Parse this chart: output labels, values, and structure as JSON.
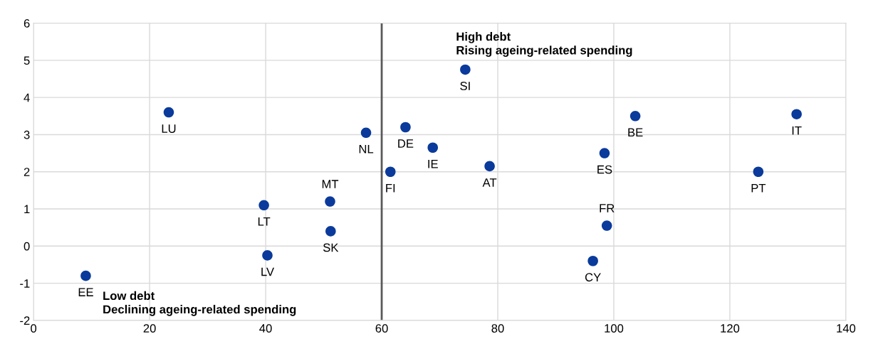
{
  "chart_data": {
    "type": "scatter",
    "x": [
      9,
      23.3,
      39.7,
      40.3,
      51.1,
      51.2,
      57.3,
      61.5,
      64.1,
      68.8,
      74.4,
      78.6,
      96.4,
      98.4,
      98.8,
      103.7,
      124.9,
      131.5
    ],
    "series": [
      {
        "color": "#0a3a9b",
        "values": [
          -0.8,
          3.6,
          1.1,
          -0.25,
          1.2,
          0.4,
          3.05,
          2.0,
          3.2,
          2.65,
          4.75,
          2.15,
          -0.4,
          2.5,
          0.55,
          3.5,
          2.0,
          3.55
        ],
        "value_labels": [
          "EE",
          "LU",
          "LT",
          "LV",
          "MT",
          "SK",
          "NL",
          "FI",
          "DE",
          "IE",
          "SI",
          "AT",
          "CY",
          "ES",
          "FR",
          "BE",
          "PT",
          "IT"
        ]
      }
    ],
    "xlim": [
      0,
      140
    ],
    "xticks": [
      0,
      20,
      40,
      60,
      80,
      100,
      120,
      140
    ],
    "ylim": [
      -2,
      6
    ],
    "yticks": [
      -2,
      -1,
      0,
      1,
      2,
      3,
      4,
      5,
      6
    ],
    "grid": true,
    "marker": "circle",
    "ref_lines": [
      {
        "axis": "x",
        "value": 60,
        "color": "#595959"
      }
    ],
    "annotations": [
      "High debt\nRising ageing-related spending",
      "Low debt\nDeclining ageing-related spending"
    ]
  }
}
